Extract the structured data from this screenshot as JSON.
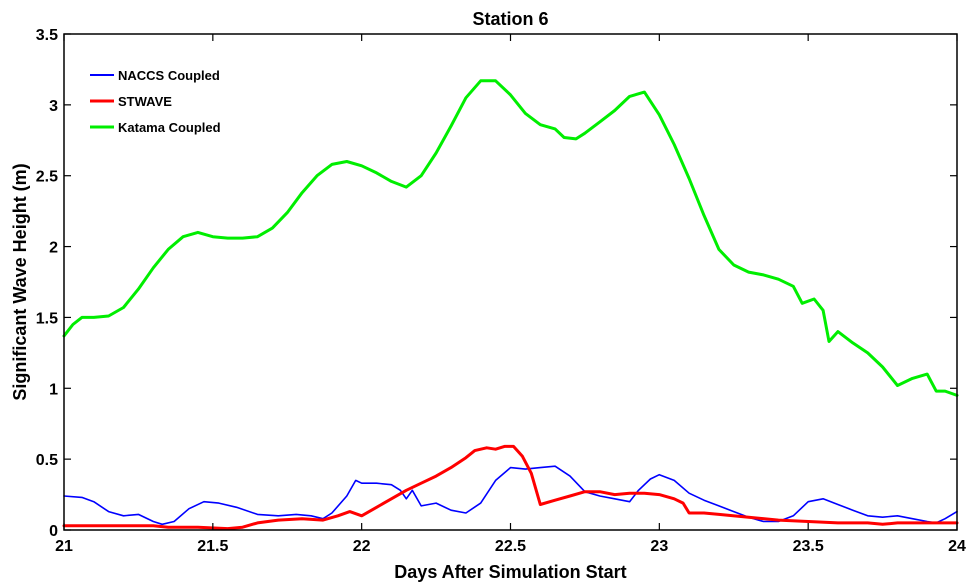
{
  "chart_data": {
    "type": "line",
    "title": "Station 6",
    "xlabel": "Days After Simulation Start",
    "ylabel": "Significant Wave Height (m)",
    "xlim": [
      21,
      24
    ],
    "ylim": [
      0,
      3.5
    ],
    "xticks": [
      "21",
      "21.5",
      "22",
      "22.5",
      "23",
      "23.5",
      "24"
    ],
    "yticks": [
      "0",
      "0.5",
      "1",
      "1.5",
      "2",
      "2.5",
      "3",
      "3.5"
    ],
    "grid": false,
    "legend_position": "top-left",
    "series": [
      {
        "name": "NACCS Coupled",
        "color": "#0000ff",
        "x": [
          21.0,
          21.06,
          21.1,
          21.15,
          21.2,
          21.25,
          21.3,
          21.33,
          21.37,
          21.42,
          21.47,
          21.52,
          21.58,
          21.65,
          21.72,
          21.78,
          21.83,
          21.87,
          21.9,
          21.95,
          21.98,
          22.0,
          22.05,
          22.1,
          22.13,
          22.15,
          22.17,
          22.2,
          22.25,
          22.3,
          22.35,
          22.4,
          22.45,
          22.5,
          22.55,
          22.6,
          22.65,
          22.7,
          22.75,
          22.8,
          22.85,
          22.9,
          22.93,
          22.97,
          23.0,
          23.05,
          23.1,
          23.15,
          23.2,
          23.25,
          23.3,
          23.35,
          23.4,
          23.45,
          23.5,
          23.55,
          23.6,
          23.65,
          23.7,
          23.75,
          23.8,
          23.85,
          23.9,
          23.93,
          23.96,
          24.0
        ],
        "y": [
          0.24,
          0.23,
          0.2,
          0.13,
          0.1,
          0.11,
          0.06,
          0.04,
          0.06,
          0.15,
          0.2,
          0.19,
          0.16,
          0.11,
          0.1,
          0.11,
          0.1,
          0.08,
          0.12,
          0.24,
          0.35,
          0.33,
          0.33,
          0.32,
          0.28,
          0.22,
          0.28,
          0.17,
          0.19,
          0.14,
          0.12,
          0.19,
          0.35,
          0.44,
          0.43,
          0.44,
          0.45,
          0.38,
          0.27,
          0.24,
          0.22,
          0.2,
          0.28,
          0.36,
          0.39,
          0.35,
          0.26,
          0.21,
          0.17,
          0.13,
          0.09,
          0.06,
          0.06,
          0.1,
          0.2,
          0.22,
          0.18,
          0.14,
          0.1,
          0.09,
          0.1,
          0.08,
          0.06,
          0.05,
          0.08,
          0.13
        ]
      },
      {
        "name": "STWAVE",
        "color": "#ff0000",
        "x": [
          21.0,
          21.1,
          21.2,
          21.3,
          21.35,
          21.45,
          21.55,
          21.6,
          21.65,
          21.72,
          21.8,
          21.87,
          21.92,
          21.96,
          22.0,
          22.05,
          22.1,
          22.15,
          22.2,
          22.25,
          22.3,
          22.35,
          22.38,
          22.42,
          22.45,
          22.48,
          22.51,
          22.54,
          22.57,
          22.6,
          22.65,
          22.7,
          22.75,
          22.8,
          22.85,
          22.9,
          22.95,
          23.0,
          23.05,
          23.08,
          23.1,
          23.15,
          23.2,
          23.3,
          23.4,
          23.5,
          23.6,
          23.7,
          23.75,
          23.8,
          23.9,
          24.0
        ],
        "y": [
          0.03,
          0.03,
          0.03,
          0.03,
          0.02,
          0.02,
          0.01,
          0.02,
          0.05,
          0.07,
          0.08,
          0.07,
          0.1,
          0.13,
          0.1,
          0.16,
          0.22,
          0.28,
          0.33,
          0.38,
          0.44,
          0.51,
          0.56,
          0.58,
          0.57,
          0.59,
          0.59,
          0.52,
          0.4,
          0.18,
          0.21,
          0.24,
          0.27,
          0.27,
          0.25,
          0.26,
          0.26,
          0.25,
          0.22,
          0.19,
          0.12,
          0.12,
          0.11,
          0.09,
          0.07,
          0.06,
          0.05,
          0.05,
          0.04,
          0.05,
          0.05,
          0.05
        ]
      },
      {
        "name": "Katama Coupled",
        "color": "#00ee00",
        "x": [
          21.0,
          21.03,
          21.06,
          21.1,
          21.15,
          21.2,
          21.25,
          21.3,
          21.35,
          21.4,
          21.45,
          21.5,
          21.55,
          21.6,
          21.65,
          21.7,
          21.75,
          21.8,
          21.85,
          21.9,
          21.95,
          22.0,
          22.05,
          22.1,
          22.15,
          22.2,
          22.25,
          22.3,
          22.35,
          22.4,
          22.45,
          22.5,
          22.55,
          22.6,
          22.65,
          22.68,
          22.72,
          22.75,
          22.8,
          22.85,
          22.9,
          22.95,
          23.0,
          23.05,
          23.1,
          23.15,
          23.2,
          23.25,
          23.3,
          23.35,
          23.4,
          23.45,
          23.48,
          23.52,
          23.55,
          23.57,
          23.6,
          23.65,
          23.7,
          23.75,
          23.8,
          23.85,
          23.9,
          23.93,
          23.96,
          24.0
        ],
        "y": [
          1.37,
          1.45,
          1.5,
          1.5,
          1.51,
          1.57,
          1.7,
          1.85,
          1.98,
          2.07,
          2.1,
          2.07,
          2.06,
          2.06,
          2.07,
          2.13,
          2.24,
          2.38,
          2.5,
          2.58,
          2.6,
          2.57,
          2.52,
          2.46,
          2.42,
          2.5,
          2.66,
          2.85,
          3.05,
          3.17,
          3.17,
          3.07,
          2.94,
          2.86,
          2.83,
          2.77,
          2.76,
          2.8,
          2.88,
          2.96,
          3.06,
          3.09,
          2.93,
          2.72,
          2.48,
          2.22,
          1.98,
          1.87,
          1.82,
          1.8,
          1.77,
          1.72,
          1.6,
          1.63,
          1.55,
          1.33,
          1.4,
          1.32,
          1.25,
          1.15,
          1.02,
          1.07,
          1.1,
          0.98,
          0.98,
          0.95
        ]
      }
    ]
  }
}
